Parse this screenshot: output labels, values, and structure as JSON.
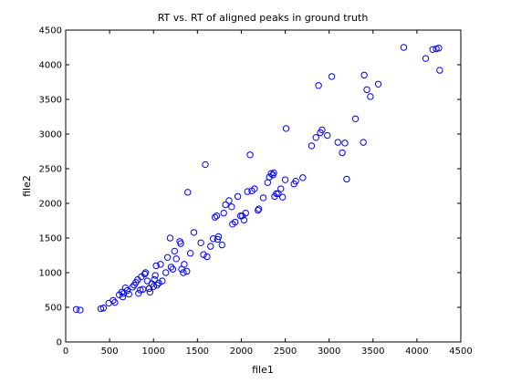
{
  "chart_data": {
    "type": "scatter",
    "title": "RT vs. RT of aligned peaks in ground truth",
    "xlabel": "file1",
    "ylabel": "file2",
    "xlim": [
      0,
      4500
    ],
    "ylim": [
      0,
      4500
    ],
    "xticks": [
      0,
      500,
      1000,
      1500,
      2000,
      2500,
      3000,
      3500,
      4000,
      4500
    ],
    "yticks": [
      0,
      500,
      1000,
      1500,
      2000,
      2500,
      3000,
      3500,
      4000,
      4500
    ],
    "marker": "circle-open",
    "color": "#0000ff",
    "points": [
      [
        120,
        470
      ],
      [
        165,
        460
      ],
      [
        400,
        480
      ],
      [
        430,
        490
      ],
      [
        490,
        560
      ],
      [
        540,
        600
      ],
      [
        560,
        570
      ],
      [
        610,
        680
      ],
      [
        640,
        720
      ],
      [
        650,
        650
      ],
      [
        660,
        700
      ],
      [
        680,
        780
      ],
      [
        700,
        740
      ],
      [
        720,
        690
      ],
      [
        760,
        790
      ],
      [
        780,
        820
      ],
      [
        800,
        860
      ],
      [
        820,
        900
      ],
      [
        830,
        700
      ],
      [
        850,
        750
      ],
      [
        860,
        940
      ],
      [
        880,
        760
      ],
      [
        900,
        980
      ],
      [
        910,
        1000
      ],
      [
        930,
        880
      ],
      [
        950,
        770
      ],
      [
        960,
        720
      ],
      [
        980,
        840
      ],
      [
        1000,
        800
      ],
      [
        1010,
        900
      ],
      [
        1020,
        960
      ],
      [
        1030,
        1100
      ],
      [
        1040,
        820
      ],
      [
        1060,
        850
      ],
      [
        1080,
        1120
      ],
      [
        1100,
        880
      ],
      [
        1140,
        1000
      ],
      [
        1160,
        1220
      ],
      [
        1190,
        1500
      ],
      [
        1200,
        1080
      ],
      [
        1220,
        1050
      ],
      [
        1240,
        1310
      ],
      [
        1260,
        1200
      ],
      [
        1300,
        1450
      ],
      [
        1310,
        1420
      ],
      [
        1320,
        1050
      ],
      [
        1340,
        1000
      ],
      [
        1350,
        1120
      ],
      [
        1380,
        1020
      ],
      [
        1390,
        2160
      ],
      [
        1420,
        1280
      ],
      [
        1460,
        1580
      ],
      [
        1540,
        1430
      ],
      [
        1570,
        1260
      ],
      [
        1590,
        2560
      ],
      [
        1610,
        1230
      ],
      [
        1650,
        1380
      ],
      [
        1680,
        1490
      ],
      [
        1700,
        1800
      ],
      [
        1720,
        1820
      ],
      [
        1730,
        1480
      ],
      [
        1740,
        1520
      ],
      [
        1780,
        1400
      ],
      [
        1800,
        1860
      ],
      [
        1820,
        1980
      ],
      [
        1860,
        2040
      ],
      [
        1890,
        1950
      ],
      [
        1900,
        1700
      ],
      [
        1930,
        1730
      ],
      [
        1960,
        2100
      ],
      [
        1990,
        1820
      ],
      [
        2010,
        1820
      ],
      [
        2030,
        1760
      ],
      [
        2050,
        1860
      ],
      [
        2070,
        2170
      ],
      [
        2100,
        2700
      ],
      [
        2120,
        2180
      ],
      [
        2150,
        2210
      ],
      [
        2190,
        1900
      ],
      [
        2200,
        1920
      ],
      [
        2250,
        2080
      ],
      [
        2300,
        2300
      ],
      [
        2320,
        2380
      ],
      [
        2340,
        2430
      ],
      [
        2360,
        2410
      ],
      [
        2370,
        2440
      ],
      [
        2380,
        2100
      ],
      [
        2400,
        2140
      ],
      [
        2420,
        2140
      ],
      [
        2450,
        2210
      ],
      [
        2470,
        2090
      ],
      [
        2500,
        2340
      ],
      [
        2510,
        3080
      ],
      [
        2600,
        2280
      ],
      [
        2620,
        2320
      ],
      [
        2700,
        2370
      ],
      [
        2800,
        2830
      ],
      [
        2850,
        2950
      ],
      [
        2880,
        3700
      ],
      [
        2900,
        3020
      ],
      [
        2920,
        3060
      ],
      [
        2980,
        2980
      ],
      [
        3030,
        3830
      ],
      [
        3100,
        2880
      ],
      [
        3150,
        2730
      ],
      [
        3180,
        2870
      ],
      [
        3200,
        2350
      ],
      [
        3300,
        3220
      ],
      [
        3390,
        2880
      ],
      [
        3400,
        3850
      ],
      [
        3430,
        3640
      ],
      [
        3470,
        3540
      ],
      [
        3560,
        3720
      ],
      [
        3850,
        4250
      ],
      [
        4100,
        4090
      ],
      [
        4180,
        4220
      ],
      [
        4220,
        4230
      ],
      [
        4250,
        4240
      ],
      [
        4260,
        3920
      ]
    ]
  }
}
